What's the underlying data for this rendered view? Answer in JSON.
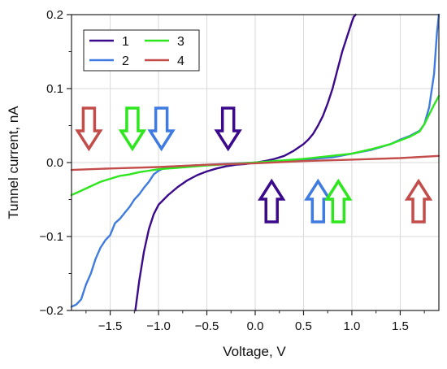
{
  "chart_data": {
    "type": "line",
    "title": "",
    "xlabel": "Voltage, V",
    "ylabel": "Tunnel current, nA",
    "xlim": [
      -1.9,
      1.9
    ],
    "ylim": [
      -0.2,
      0.2
    ],
    "xticks": [
      -1.5,
      -1.0,
      -0.5,
      0.0,
      0.5,
      1.0,
      1.5
    ],
    "xtick_labels": [
      "−1.5",
      "−1.0",
      "−0.5",
      "0.0",
      "0.5",
      "1.0",
      "1.5"
    ],
    "yticks": [
      -0.2,
      -0.1,
      0.0,
      0.1,
      0.2
    ],
    "ytick_labels": [
      "−0.2",
      "−0.1",
      "0.0",
      "0.1",
      "0.2"
    ],
    "grid": true,
    "legend_position": "top-left",
    "series": [
      {
        "name": "1",
        "color": "#3b0a8c",
        "x": [
          -1.24,
          -1.2,
          -1.15,
          -1.1,
          -1.05,
          -1.0,
          -0.9,
          -0.8,
          -0.7,
          -0.6,
          -0.5,
          -0.4,
          -0.3,
          -0.2,
          -0.1,
          0.0,
          0.1,
          0.2,
          0.3,
          0.4,
          0.5,
          0.55,
          0.6,
          0.65,
          0.7,
          0.75,
          0.8,
          0.85,
          0.9,
          0.95,
          1.0,
          1.02,
          1.04
        ],
        "y": [
          -0.2,
          -0.16,
          -0.12,
          -0.09,
          -0.07,
          -0.057,
          -0.044,
          -0.033,
          -0.024,
          -0.017,
          -0.012,
          -0.008,
          -0.005,
          -0.003,
          -0.002,
          0.0,
          0.002,
          0.005,
          0.009,
          0.016,
          0.025,
          0.031,
          0.039,
          0.05,
          0.063,
          0.08,
          0.1,
          0.125,
          0.15,
          0.17,
          0.19,
          0.197,
          0.2
        ]
      },
      {
        "name": "2",
        "color": "#3f7be0",
        "x": [
          -1.9,
          -1.85,
          -1.8,
          -1.75,
          -1.7,
          -1.65,
          -1.6,
          -1.55,
          -1.5,
          -1.45,
          -1.4,
          -1.35,
          -1.3,
          -1.25,
          -1.2,
          -1.15,
          -1.1,
          -1.05,
          -1.0,
          -0.95,
          -0.9,
          -0.8,
          -0.5,
          0.0,
          0.5,
          0.8,
          1.0,
          1.2,
          1.4,
          1.5,
          1.6,
          1.7,
          1.75,
          1.8,
          1.85,
          1.88,
          1.9
        ],
        "y": [
          -0.195,
          -0.192,
          -0.185,
          -0.165,
          -0.15,
          -0.13,
          -0.115,
          -0.105,
          -0.098,
          -0.082,
          -0.076,
          -0.068,
          -0.06,
          -0.05,
          -0.043,
          -0.034,
          -0.026,
          -0.016,
          -0.011,
          -0.008,
          -0.006,
          -0.005,
          -0.003,
          0.0,
          0.004,
          0.007,
          0.012,
          0.017,
          0.025,
          0.031,
          0.036,
          0.043,
          0.052,
          0.075,
          0.12,
          0.175,
          0.2
        ]
      },
      {
        "name": "3",
        "color": "#2ee61e",
        "x": [
          -1.9,
          -1.8,
          -1.7,
          -1.6,
          -1.5,
          -1.4,
          -1.3,
          -1.2,
          -1.1,
          -1.0,
          -0.8,
          -0.5,
          0.0,
          0.5,
          1.0,
          1.2,
          1.4,
          1.5,
          1.6,
          1.7,
          1.75,
          1.8,
          1.85,
          1.9
        ],
        "y": [
          -0.044,
          -0.038,
          -0.032,
          -0.026,
          -0.022,
          -0.018,
          -0.016,
          -0.013,
          -0.011,
          -0.009,
          -0.007,
          -0.004,
          0.0,
          0.005,
          0.012,
          0.018,
          0.025,
          0.03,
          0.035,
          0.042,
          0.052,
          0.065,
          0.078,
          0.09
        ]
      },
      {
        "name": "4",
        "color": "#c24d4a",
        "x": [
          -1.9,
          -1.5,
          -1.0,
          -0.5,
          0.0,
          0.5,
          1.0,
          1.5,
          1.9
        ],
        "y": [
          -0.01,
          -0.008,
          -0.006,
          -0.003,
          -0.001,
          0.002,
          0.004,
          0.006,
          0.009
        ]
      }
    ],
    "legend": [
      {
        "label": "1",
        "color": "#3b0a8c"
      },
      {
        "label": "2",
        "color": "#3f7be0"
      },
      {
        "label": "3",
        "color": "#2ee61e"
      },
      {
        "label": "4",
        "color": "#c24d4a"
      }
    ],
    "annotations": {
      "down_arrows": [
        {
          "x": -1.72,
          "color": "#c24d4a"
        },
        {
          "x": -1.27,
          "color": "#2ee61e"
        },
        {
          "x": -0.97,
          "color": "#3f7be0"
        },
        {
          "x": -0.28,
          "color": "#3b0a8c"
        }
      ],
      "up_arrows": [
        {
          "x": 0.17,
          "color": "#3b0a8c"
        },
        {
          "x": 0.65,
          "color": "#3f7be0"
        },
        {
          "x": 0.86,
          "color": "#2ee61e"
        },
        {
          "x": 1.69,
          "color": "#c24d4a"
        }
      ]
    }
  }
}
